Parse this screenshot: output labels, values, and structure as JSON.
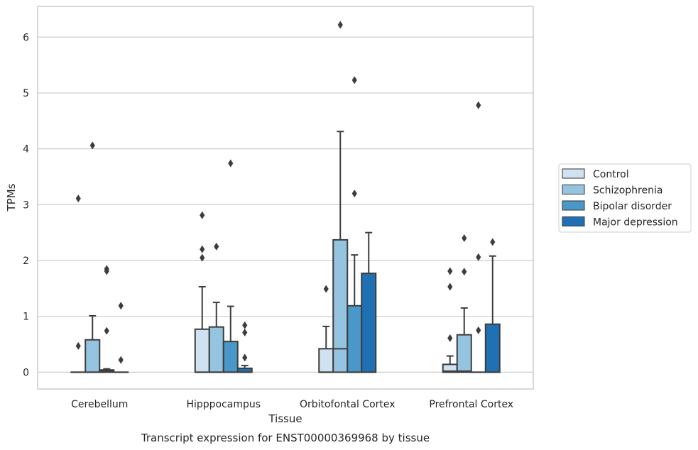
{
  "caption": "Transcript expression for ENST00000369968 by tissue",
  "chart_data": {
    "type": "box",
    "xlabel": "Tissue",
    "ylabel": "TPMs",
    "ylim": [
      -0.3,
      6.55
    ],
    "yticks": [
      0,
      1,
      2,
      3,
      4,
      5,
      6
    ],
    "grid": "horizontal",
    "legend_position": "right",
    "categories": [
      "Cerebellum",
      "Hipppocampus",
      "Orbitofontal Cortex",
      "Prefrontal Cortex"
    ],
    "series": [
      {
        "name": "Control",
        "color": "#d0e1f2",
        "boxes": [
          {
            "q1": 0,
            "median": 0,
            "q3": 0,
            "whisker_low": 0,
            "whisker_high": 0,
            "outliers": [
              0.47,
              3.11
            ]
          },
          {
            "q1": 0,
            "median": 0,
            "q3": 0.77,
            "whisker_low": 0,
            "whisker_high": 1.53,
            "outliers": [
              2.05,
              2.2,
              2.81
            ]
          },
          {
            "q1": 0,
            "median": 0,
            "q3": 0.42,
            "whisker_low": 0,
            "whisker_high": 0.82,
            "outliers": [
              1.49
            ]
          },
          {
            "q1": 0,
            "median": 0.02,
            "q3": 0.14,
            "whisker_low": 0,
            "whisker_high": 0.29,
            "outliers": [
              0.61,
              1.53,
              1.81
            ]
          }
        ]
      },
      {
        "name": "Schizophrenia",
        "color": "#94c4df",
        "boxes": [
          {
            "q1": 0,
            "median": 0,
            "q3": 0.58,
            "whisker_low": 0,
            "whisker_high": 1.01,
            "outliers": [
              4.06
            ]
          },
          {
            "q1": 0,
            "median": 0,
            "q3": 0.81,
            "whisker_low": 0,
            "whisker_high": 1.25,
            "outliers": [
              2.25
            ]
          },
          {
            "q1": 0,
            "median": 0.42,
            "q3": 2.37,
            "whisker_low": 0,
            "whisker_high": 4.31,
            "outliers": [
              6.22
            ]
          },
          {
            "q1": 0,
            "median": 0.02,
            "q3": 0.67,
            "whisker_low": 0,
            "whisker_high": 1.15,
            "outliers": [
              1.8,
              2.4
            ]
          }
        ]
      },
      {
        "name": "Bipolar disorder",
        "color": "#4a98c9",
        "boxes": [
          {
            "q1": 0,
            "median": 0.02,
            "q3": 0.04,
            "whisker_low": 0,
            "whisker_high": 0.06,
            "outliers": [
              0.74,
              1.81,
              1.85
            ]
          },
          {
            "q1": 0,
            "median": 0,
            "q3": 0.55,
            "whisker_low": 0,
            "whisker_high": 1.18,
            "outliers": [
              3.74
            ]
          },
          {
            "q1": 0,
            "median": 0,
            "q3": 1.19,
            "whisker_low": 0,
            "whisker_high": 2.1,
            "outliers": [
              3.2,
              5.23
            ]
          },
          {
            "q1": 0,
            "median": 0,
            "q3": 0,
            "whisker_low": 0,
            "whisker_high": 0,
            "outliers": [
              0.75,
              2.06,
              4.78
            ]
          }
        ]
      },
      {
        "name": "Major depression",
        "color": "#2070b4",
        "boxes": [
          {
            "q1": 0,
            "median": 0,
            "q3": 0,
            "whisker_low": 0,
            "whisker_high": 0,
            "outliers": [
              0.22,
              1.19
            ]
          },
          {
            "q1": 0,
            "median": 0,
            "q3": 0.07,
            "whisker_low": 0,
            "whisker_high": 0.12,
            "outliers": [
              0.26,
              0.71,
              0.84
            ]
          },
          {
            "q1": 0,
            "median": 0,
            "q3": 1.77,
            "whisker_low": 0,
            "whisker_high": 2.5,
            "outliers": []
          },
          {
            "q1": 0,
            "median": 0,
            "q3": 0.86,
            "whisker_low": 0,
            "whisker_high": 2.08,
            "outliers": [
              2.33
            ]
          }
        ]
      }
    ]
  }
}
